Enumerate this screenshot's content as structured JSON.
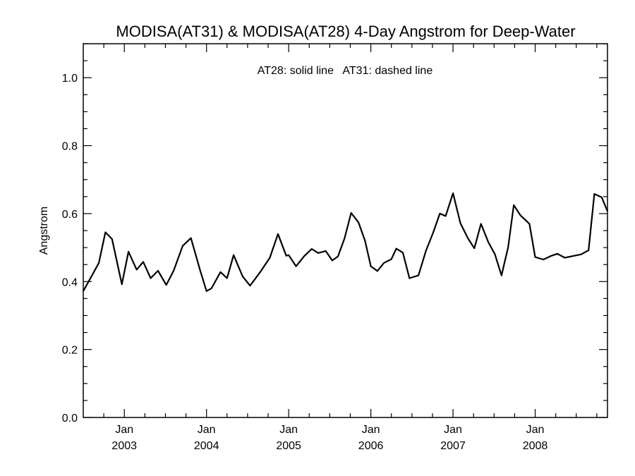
{
  "chart_data": {
    "type": "line",
    "title": "MODISA(AT31) & MODISA(AT28) 4-Day Angstrom for Deep-Water",
    "annotation": "AT28: solid line   AT31: dashed line",
    "xlabel": "",
    "ylabel": "Angstrom",
    "ylim": [
      0.0,
      1.1
    ],
    "xlim": [
      2002.5,
      2008.88
    ],
    "y_ticks": [
      0.0,
      0.2,
      0.4,
      0.6,
      0.8,
      1.0
    ],
    "y_tick_labels": [
      "0.0",
      "0.2",
      "0.4",
      "0.6",
      "0.8",
      "1.0"
    ],
    "x_ticks": [
      {
        "x": 2003.0,
        "month": "Jan",
        "year": "2003"
      },
      {
        "x": 2004.0,
        "month": "Jan",
        "year": "2004"
      },
      {
        "x": 2005.0,
        "month": "Jan",
        "year": "2005"
      },
      {
        "x": 2006.0,
        "month": "Jan",
        "year": "2006"
      },
      {
        "x": 2007.0,
        "month": "Jan",
        "year": "2007"
      },
      {
        "x": 2008.0,
        "month": "Jan",
        "year": "2008"
      }
    ],
    "grid": false,
    "series": [
      {
        "name": "AT28",
        "style": "solid",
        "color": "#000000",
        "x": [
          2002.5,
          2002.6,
          2002.69,
          2002.77,
          2002.85,
          2002.97,
          2003.05,
          2003.15,
          2003.23,
          2003.32,
          2003.41,
          2003.51,
          2003.6,
          2003.71,
          2003.81,
          2003.92,
          2004.0,
          2004.06,
          2004.17,
          2004.25,
          2004.33,
          2004.44,
          2004.53,
          2004.66,
          2004.77,
          2004.87,
          2004.97,
          2005.0,
          2005.09,
          2005.19,
          2005.28,
          2005.36,
          2005.45,
          2005.53,
          2005.6,
          2005.68,
          2005.76,
          2005.85,
          2005.93,
          2006.0,
          2006.08,
          2006.16,
          2006.25,
          2006.31,
          2006.39,
          2006.47,
          2006.58,
          2006.67,
          2006.76,
          2006.84,
          2006.91,
          2007.0,
          2007.09,
          2007.18,
          2007.26,
          2007.34,
          2007.43,
          2007.51,
          2007.59,
          2007.67,
          2007.74,
          2007.82,
          2007.93,
          2008.0,
          2008.1,
          2008.19,
          2008.27,
          2008.36,
          2008.46,
          2008.56,
          2008.65,
          2008.72,
          2008.81,
          2008.88
        ],
        "y": [
          0.372,
          0.415,
          0.455,
          0.545,
          0.525,
          0.392,
          0.488,
          0.435,
          0.458,
          0.41,
          0.432,
          0.39,
          0.432,
          0.505,
          0.528,
          0.435,
          0.372,
          0.38,
          0.428,
          0.41,
          0.478,
          0.415,
          0.388,
          0.43,
          0.47,
          0.54,
          0.476,
          0.478,
          0.445,
          0.475,
          0.496,
          0.484,
          0.49,
          0.462,
          0.474,
          0.527,
          0.602,
          0.574,
          0.52,
          0.445,
          0.431,
          0.455,
          0.466,
          0.497,
          0.485,
          0.41,
          0.418,
          0.49,
          0.545,
          0.6,
          0.593,
          0.66,
          0.572,
          0.528,
          0.498,
          0.57,
          0.516,
          0.48,
          0.418,
          0.5,
          0.625,
          0.595,
          0.57,
          0.472,
          0.465,
          0.475,
          0.482,
          0.47,
          0.475,
          0.48,
          0.492,
          0.658,
          0.648,
          0.607
        ]
      }
    ]
  }
}
